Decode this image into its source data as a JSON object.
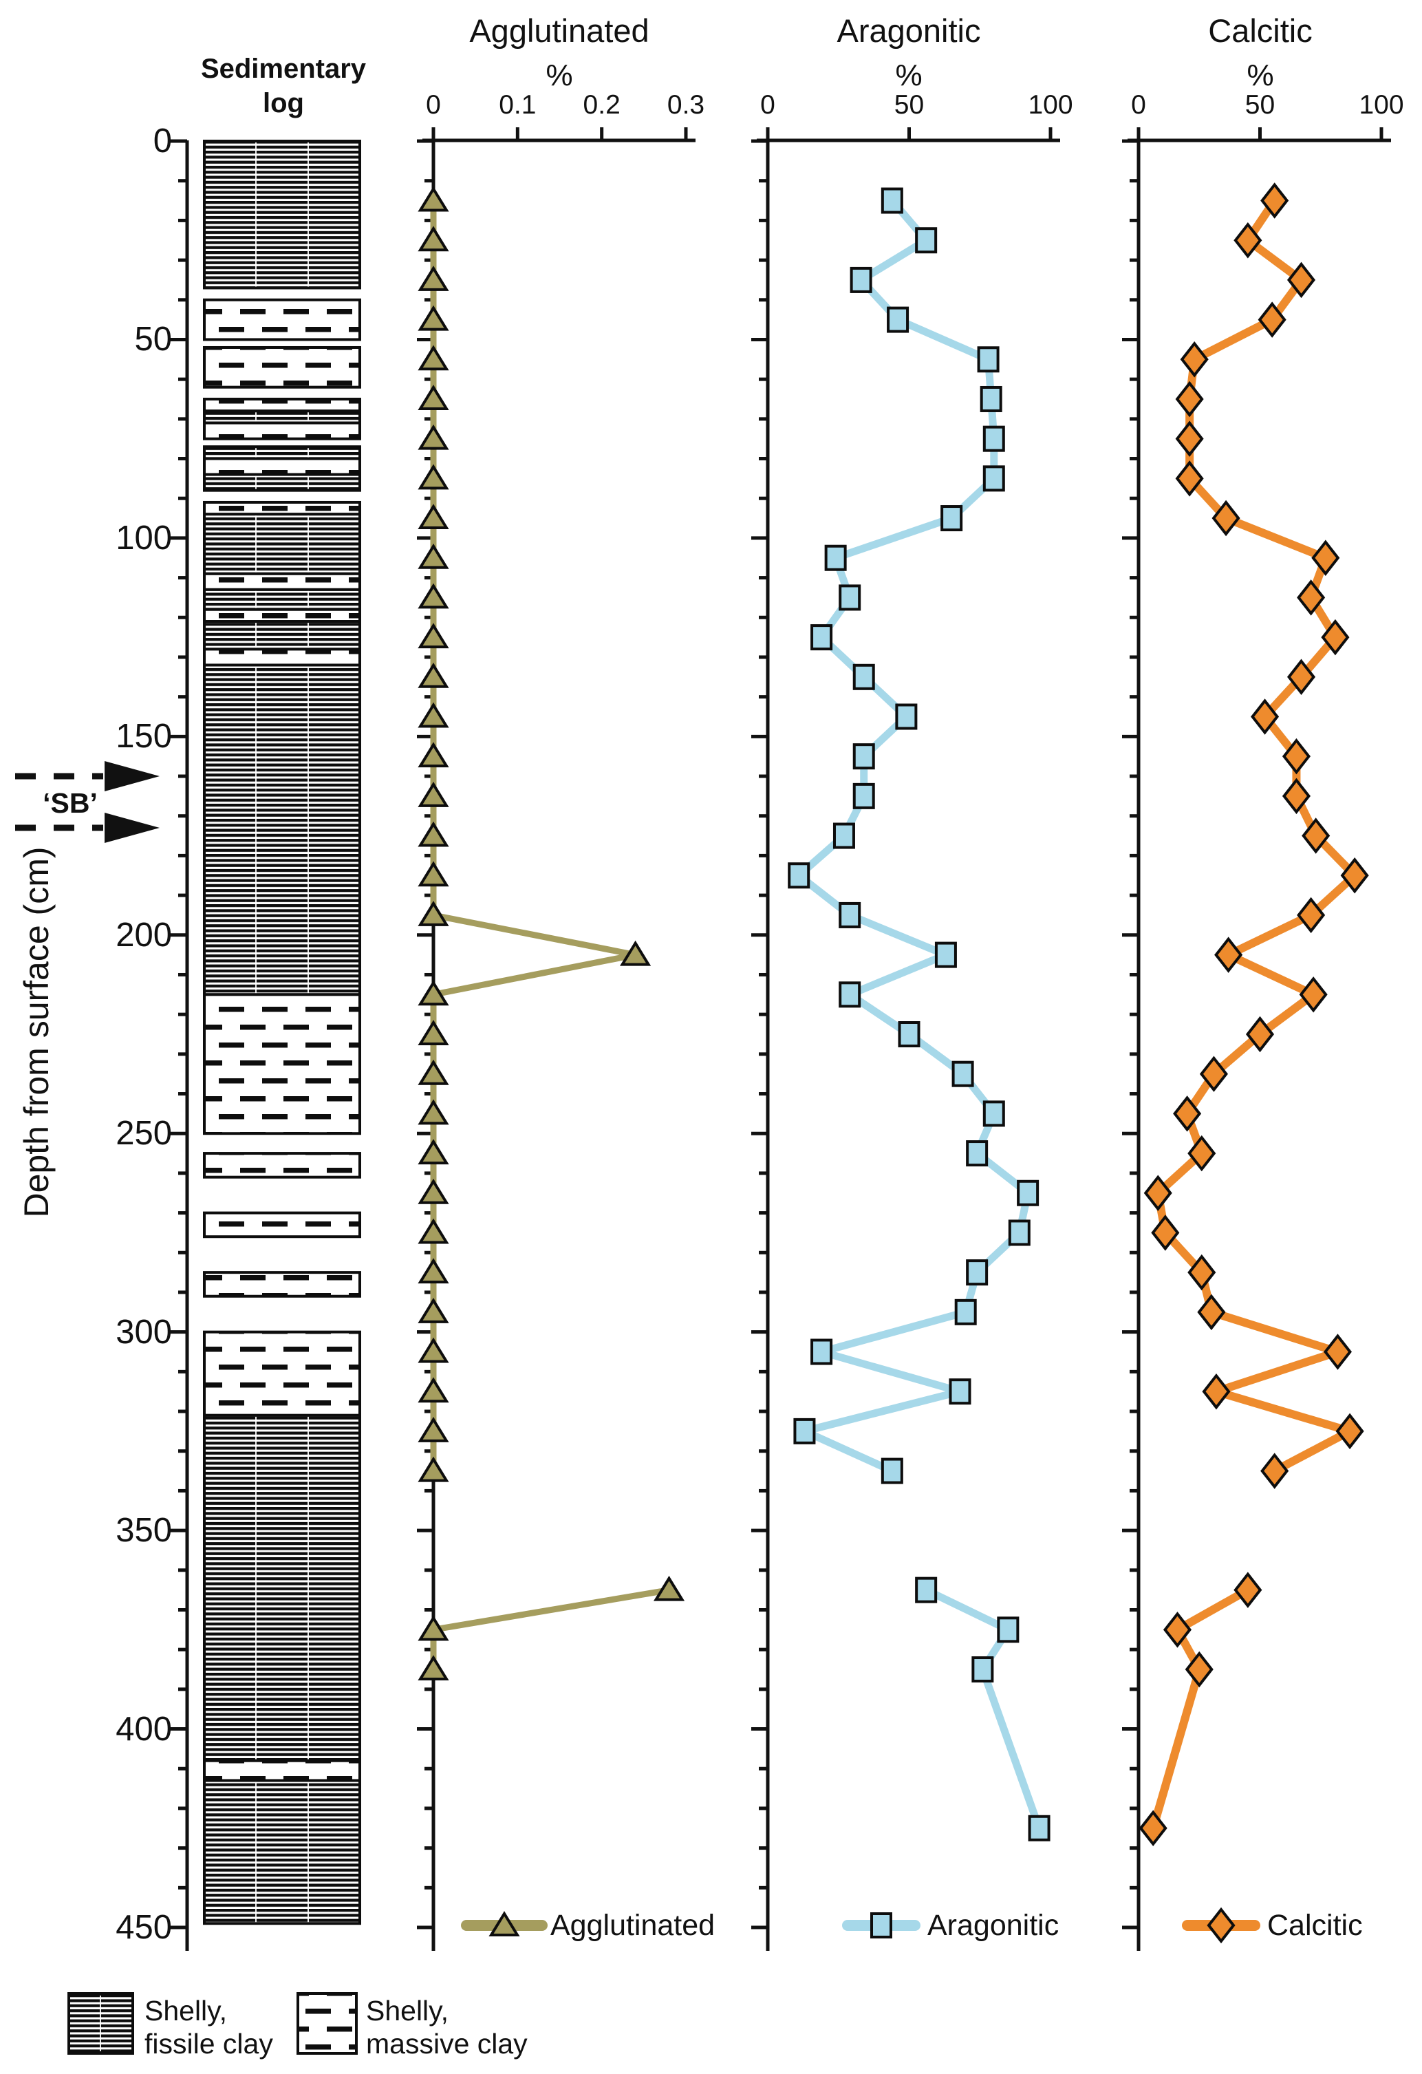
{
  "figure": {
    "kind": "depth-profile lithology figure"
  },
  "sed_log": {
    "title_line1": "Sedimentary",
    "title_line2": "log",
    "layers": [
      {
        "from": 0,
        "to": 37,
        "type": "fissile"
      },
      {
        "from": 40,
        "to": 50,
        "type": "massive"
      },
      {
        "from": 52,
        "to": 62,
        "type": "massive"
      },
      {
        "from": 65,
        "to": 68,
        "type": "massive"
      },
      {
        "from": 68,
        "to": 71,
        "type": "fissile"
      },
      {
        "from": 71,
        "to": 75,
        "type": "massive"
      },
      {
        "from": 77,
        "to": 80,
        "type": "fissile"
      },
      {
        "from": 80,
        "to": 84,
        "type": "massive"
      },
      {
        "from": 84,
        "to": 88,
        "type": "fissile"
      },
      {
        "from": 91,
        "to": 94,
        "type": "massive"
      },
      {
        "from": 94,
        "to": 109,
        "type": "fissile"
      },
      {
        "from": 109,
        "to": 113,
        "type": "massive"
      },
      {
        "from": 113,
        "to": 118,
        "type": "fissile"
      },
      {
        "from": 118,
        "to": 121,
        "type": "massive"
      },
      {
        "from": 121,
        "to": 128,
        "type": "fissile"
      },
      {
        "from": 128,
        "to": 132,
        "type": "massive"
      },
      {
        "from": 132,
        "to": 215,
        "type": "fissile"
      },
      {
        "from": 215,
        "to": 250,
        "type": "massive"
      },
      {
        "from": 255,
        "to": 261,
        "type": "massive"
      },
      {
        "from": 270,
        "to": 276,
        "type": "massive"
      },
      {
        "from": 285,
        "to": 291,
        "type": "massive"
      },
      {
        "from": 300,
        "to": 321,
        "type": "massive"
      },
      {
        "from": 321,
        "to": 408,
        "type": "fissile"
      },
      {
        "from": 408,
        "to": 413,
        "type": "massive"
      },
      {
        "from": 413,
        "to": 449,
        "type": "fissile"
      }
    ]
  },
  "depth_axis": {
    "label": "Depth from surface (cm)",
    "ticks": [
      0,
      50,
      100,
      150,
      200,
      250,
      300,
      350,
      400,
      450
    ],
    "minor_step": 10,
    "max": 450
  },
  "sb": {
    "label": "‘SB’",
    "arrow_depths": [
      160,
      173
    ]
  },
  "panels": [
    {
      "id": "agglutinated",
      "title": "Agglutinated",
      "unit": "%",
      "tick_labels": [
        "0",
        "0.1",
        "0.2",
        "0.3"
      ],
      "tick_values": [
        0,
        0.1,
        0.2,
        0.3
      ],
      "xmax": 0.3
    },
    {
      "id": "aragonitic",
      "title": "Aragonitic",
      "unit": "%",
      "tick_labels": [
        "0",
        "50",
        "100"
      ],
      "tick_values": [
        0,
        50,
        100
      ],
      "xmax": 100
    },
    {
      "id": "calcitic",
      "title": "Calcitic",
      "unit": "%",
      "tick_labels": [
        "0",
        "50",
        "100"
      ],
      "tick_values": [
        0,
        50,
        100
      ],
      "xmax": 100
    }
  ],
  "chart_data": {
    "type": "line",
    "orientation": "depth-profile",
    "ylabel": "Depth from surface (cm)",
    "ylim": [
      0,
      450
    ],
    "series": [
      {
        "name": "Agglutinated",
        "marker": "triangle",
        "color": "#a59d5e",
        "xlim": [
          0,
          0.3
        ],
        "xlabel": "%",
        "segments": [
          {
            "depths": [
              15,
              25,
              35,
              45,
              55,
              65,
              75,
              85,
              95,
              105,
              115,
              125,
              135,
              145,
              155,
              165,
              175,
              185,
              195,
              205,
              215,
              225,
              235,
              245,
              255,
              265,
              275,
              285,
              295,
              305,
              315,
              325,
              335
            ],
            "values": [
              0,
              0,
              0,
              0,
              0,
              0,
              0,
              0,
              0,
              0,
              0,
              0,
              0,
              0,
              0,
              0,
              0,
              0,
              0,
              0.24,
              0,
              0,
              0,
              0,
              0,
              0,
              0,
              0,
              0,
              0,
              0,
              0,
              0
            ]
          },
          {
            "depths": [
              365,
              375,
              385
            ],
            "values": [
              0.28,
              0,
              0
            ]
          }
        ]
      },
      {
        "name": "Aragonitic",
        "marker": "square",
        "color": "#a6d8e9",
        "xlim": [
          0,
          100
        ],
        "xlabel": "%",
        "segments": [
          {
            "depths": [
              15,
              25,
              35,
              45,
              55,
              65,
              75,
              85,
              95,
              105,
              115,
              125,
              135,
              145,
              155,
              165,
              175,
              185,
              195,
              205,
              215,
              225,
              235,
              245,
              255,
              265,
              275,
              285,
              295,
              305,
              315,
              325,
              335
            ],
            "values": [
              44,
              56,
              33,
              46,
              78,
              79,
              80,
              80,
              65,
              24,
              29,
              19,
              34,
              49,
              34,
              34,
              27,
              11,
              29,
              63,
              29,
              50,
              69,
              80,
              74,
              92,
              89,
              74,
              70,
              19,
              68,
              13,
              44
            ]
          },
          {
            "depths": [
              365,
              375,
              385,
              425
            ],
            "values": [
              56,
              85,
              76,
              96
            ]
          }
        ]
      },
      {
        "name": "Calcitic",
        "marker": "diamond",
        "color": "#ee8b2d",
        "xlim": [
          0,
          100
        ],
        "xlabel": "%",
        "segments": [
          {
            "depths": [
              15,
              25,
              35,
              45,
              55,
              65,
              75,
              85,
              95,
              105,
              115,
              125,
              135,
              145,
              155,
              165,
              175,
              185,
              195,
              205,
              215,
              225,
              235,
              245,
              255,
              265,
              275,
              285,
              295,
              305,
              315,
              325,
              335
            ],
            "values": [
              56,
              45,
              67,
              55,
              23,
              21,
              21,
              21,
              36,
              77,
              71,
              81,
              67,
              52,
              65,
              65,
              73,
              89,
              71,
              37,
              72,
              50,
              31,
              20,
              26,
              8,
              11,
              26,
              30,
              82,
              32,
              87,
              56
            ]
          },
          {
            "depths": [
              365,
              375,
              385,
              425
            ],
            "values": [
              45,
              16,
              25,
              6
            ]
          }
        ]
      }
    ]
  },
  "lithology_legend": [
    {
      "type": "fissile",
      "line1": "Shelly,",
      "line2": "fissile clay"
    },
    {
      "type": "massive",
      "line1": "Shelly,",
      "line2": "massive clay"
    }
  ]
}
